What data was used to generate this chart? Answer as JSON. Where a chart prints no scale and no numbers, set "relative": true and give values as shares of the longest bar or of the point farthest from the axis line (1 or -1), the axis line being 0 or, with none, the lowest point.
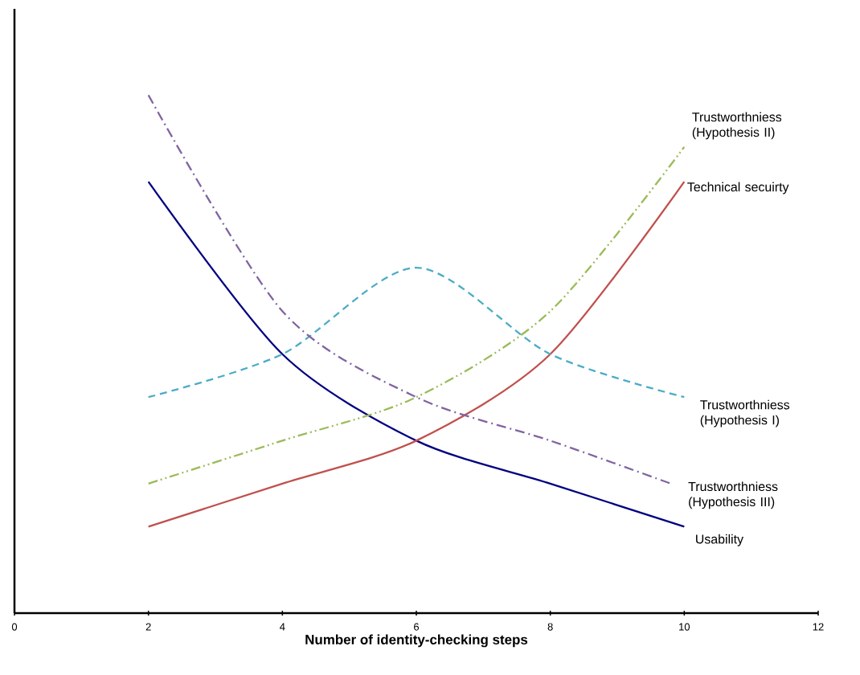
{
  "chart_data": {
    "type": "line",
    "relative": true,
    "xlabel": "Number of identity-checking steps",
    "xlim": [
      0,
      12
    ],
    "xticks": [
      0,
      2,
      4,
      6,
      8,
      10,
      12
    ],
    "grid": false,
    "marker": "none",
    "series": [
      {
        "name": "Usability",
        "color": "#000080",
        "line_style": "solid",
        "x": [
          2,
          4,
          6,
          8,
          10
        ],
        "values": [
          0.833,
          0.5,
          0.333,
          0.25,
          0.167
        ]
      },
      {
        "name": "Technical secuirty",
        "color": "#c0504d",
        "line_style": "solid",
        "x": [
          2,
          4,
          6,
          8,
          10
        ],
        "values": [
          0.167,
          0.25,
          0.333,
          0.5,
          0.833
        ]
      },
      {
        "name": "Trustworthniess (Hypothesis II)",
        "color": "#9bbb59",
        "line_style": "dashdotdot",
        "x": [
          2,
          4,
          6,
          8,
          10
        ],
        "values": [
          0.25,
          0.333,
          0.417,
          0.583,
          0.9
        ]
      },
      {
        "name": "Trustworthniess (Hypothesis I)",
        "color": "#4bacc6",
        "line_style": "dashed",
        "x": [
          2,
          4,
          6,
          8,
          10
        ],
        "values": [
          0.417,
          0.5,
          0.667,
          0.5,
          0.417
        ]
      },
      {
        "name": "Trustworthniess (Hypothesis III)",
        "color": "#8064a2",
        "line_style": "dashdot",
        "x": [
          2,
          4,
          6,
          8,
          9.8
        ],
        "values": [
          1.0,
          0.583,
          0.417,
          0.333,
          0.25
        ]
      }
    ]
  }
}
